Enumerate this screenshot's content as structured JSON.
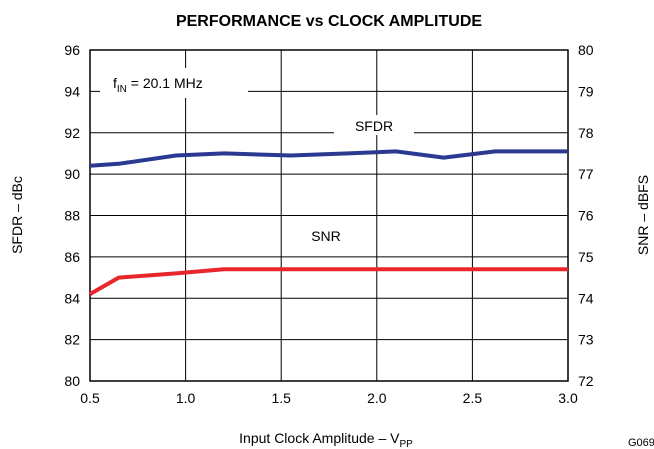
{
  "chart_data": {
    "type": "line",
    "title": "PERFORMANCE vs CLOCK AMPLITUDE",
    "xlabel": "Input Clock Amplitude – V",
    "xlabel_sub": "PP",
    "ylabel_left": "SFDR – dBc",
    "ylabel_right": "SNR – dBFS",
    "xlim": [
      0.5,
      3.0
    ],
    "ylim_left": [
      80,
      96
    ],
    "ylim_right": [
      72,
      80
    ],
    "x_ticks": [
      "0.5",
      "1.0",
      "1.5",
      "2.0",
      "2.5",
      "3.0"
    ],
    "y_ticks_left": [
      "80",
      "82",
      "84",
      "86",
      "88",
      "90",
      "92",
      "94",
      "96"
    ],
    "y_ticks_right": [
      "72",
      "73",
      "74",
      "75",
      "76",
      "77",
      "78",
      "79",
      "80"
    ],
    "grid": true,
    "annotation": {
      "prefix": "f",
      "sub": "IN",
      "suffix": " = 20.1 MHz"
    },
    "figure_id": "G069",
    "series": [
      {
        "name": "SFDR",
        "axis": "left",
        "color": "#2b3990",
        "x": [
          0.5,
          0.65,
          0.95,
          1.2,
          1.55,
          1.85,
          2.1,
          2.35,
          2.62,
          3.0
        ],
        "y": [
          90.4,
          90.5,
          90.9,
          91.0,
          90.9,
          91.0,
          91.1,
          90.8,
          91.1,
          91.1
        ]
      },
      {
        "name": "SNR",
        "axis": "right",
        "color": "#e8262b",
        "x": [
          0.5,
          0.65,
          0.95,
          1.2,
          1.55,
          2.0,
          2.5,
          3.0
        ],
        "y": [
          74.1,
          74.5,
          74.6,
          74.7,
          74.7,
          74.7,
          74.7,
          74.7
        ]
      }
    ]
  }
}
